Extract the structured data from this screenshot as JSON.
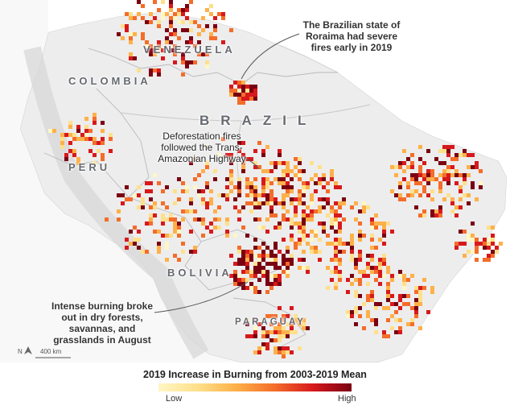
{
  "countries": {
    "venezuela": "VENEZUELA",
    "colombia": "COLOMBIA",
    "brazil": "BRAZIL",
    "peru": "PERU",
    "bolivia": "BOLIVIA",
    "paraguay": "PARAGUAY"
  },
  "annotations": {
    "roraima": "The Brazilian state of Roraima had severe fires early in 2019",
    "transamazon": "Deforestation fires followed the Trans-Amazonian Highway",
    "intense": "Intense burning broke out in dry forests, savannas, and grasslands in August"
  },
  "scale_bar": {
    "label": "400 km"
  },
  "north_arrow": {
    "label": "N"
  },
  "legend": {
    "title": "2019 Increase in Burning from 2003-2019 Mean",
    "low": "Low",
    "high": "High",
    "colors": [
      "#fff7c4",
      "#fee08b",
      "#fdb14a",
      "#f46d2a",
      "#d7191c",
      "#7a0012"
    ]
  },
  "colors": {
    "land": "#eeeeee",
    "ocean": "#ffffff",
    "border": "#b9b9b9"
  }
}
